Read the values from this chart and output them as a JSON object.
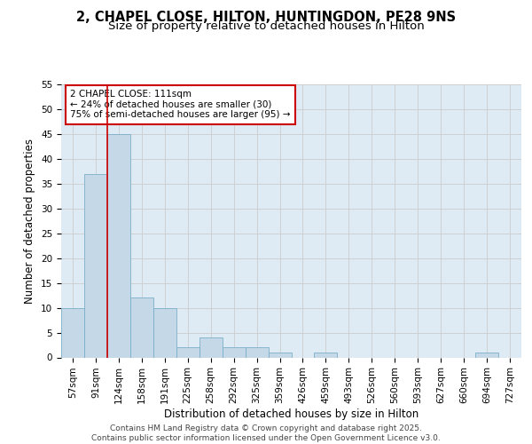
{
  "title_line1": "2, CHAPEL CLOSE, HILTON, HUNTINGDON, PE28 9NS",
  "title_line2": "Size of property relative to detached houses in Hilton",
  "xlabel": "Distribution of detached houses by size in Hilton",
  "ylabel": "Number of detached properties",
  "categories": [
    "57sqm",
    "91sqm",
    "124sqm",
    "158sqm",
    "191sqm",
    "225sqm",
    "258sqm",
    "292sqm",
    "325sqm",
    "359sqm",
    "426sqm",
    "459sqm",
    "493sqm",
    "526sqm",
    "560sqm",
    "593sqm",
    "627sqm",
    "660sqm",
    "694sqm",
    "727sqm"
  ],
  "values": [
    10,
    37,
    45,
    12,
    10,
    2,
    4,
    2,
    2,
    1,
    0,
    1,
    0,
    0,
    0,
    0,
    0,
    0,
    1,
    0
  ],
  "bar_color": "#c5d8e8",
  "bar_edge_color": "#7aafc8",
  "grid_color": "#cccccc",
  "background_color": "#ffffff",
  "plot_bg_color": "#deeaf4",
  "vline_x": 1.5,
  "vline_color": "#cc0000",
  "annotation_text": "2 CHAPEL CLOSE: 111sqm\n← 24% of detached houses are smaller (30)\n75% of semi-detached houses are larger (95) →",
  "annotation_box_color": "#cc0000",
  "ylim": [
    0,
    55
  ],
  "yticks": [
    0,
    5,
    10,
    15,
    20,
    25,
    30,
    35,
    40,
    45,
    50,
    55
  ],
  "footer_text": "Contains HM Land Registry data © Crown copyright and database right 2025.\nContains public sector information licensed under the Open Government Licence v3.0.",
  "title_fontsize": 10.5,
  "subtitle_fontsize": 9.5,
  "axis_label_fontsize": 8.5,
  "tick_fontsize": 7.5,
  "annotation_fontsize": 7.5,
  "footer_fontsize": 6.5
}
